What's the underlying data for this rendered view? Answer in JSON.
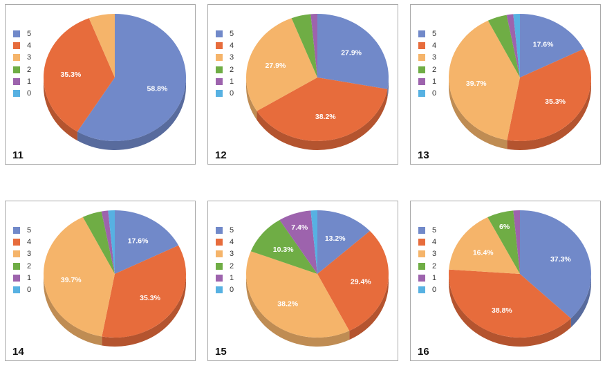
{
  "legend_categories": [
    "5",
    "4",
    "3",
    "2",
    "1",
    "0"
  ],
  "colors": {
    "5": "#7189c9",
    "4": "#e76c3c",
    "3": "#f5b46a",
    "2": "#6fad45",
    "1": "#9d63ad",
    "0": "#57b1e2"
  },
  "chart_data": [
    {
      "type": "pie",
      "title": "11",
      "categories": [
        "5",
        "4",
        "3",
        "2",
        "1",
        "0"
      ],
      "values": [
        58.8,
        35.3,
        5.9,
        0,
        0,
        0
      ],
      "data_labels": [
        "58.8%",
        "35.3%",
        "",
        "",
        "",
        ""
      ]
    },
    {
      "type": "pie",
      "title": "12",
      "categories": [
        "5",
        "4",
        "3",
        "2",
        "1",
        "0"
      ],
      "values": [
        27.9,
        38.2,
        27.9,
        4.4,
        1.5,
        0
      ],
      "data_labels": [
        "27.9%",
        "38.2%",
        "27.9%",
        "",
        "",
        ""
      ]
    },
    {
      "type": "pie",
      "title": "13",
      "categories": [
        "5",
        "4",
        "3",
        "2",
        "1",
        "0"
      ],
      "values": [
        17.6,
        35.3,
        39.7,
        4.4,
        1.5,
        1.5
      ],
      "data_labels": [
        "17.6%",
        "35.3%",
        "39.7%",
        "",
        "",
        ""
      ]
    },
    {
      "type": "pie",
      "title": "14",
      "categories": [
        "5",
        "4",
        "3",
        "2",
        "1",
        "0"
      ],
      "values": [
        17.6,
        35.3,
        39.7,
        4.4,
        1.5,
        1.5
      ],
      "data_labels": [
        "17.6%",
        "35.3%",
        "39.7%",
        "",
        "",
        ""
      ]
    },
    {
      "type": "pie",
      "title": "15",
      "categories": [
        "5",
        "4",
        "3",
        "2",
        "1",
        "0"
      ],
      "values": [
        13.2,
        29.4,
        38.2,
        10.3,
        7.4,
        1.5
      ],
      "data_labels": [
        "13.2%",
        "29.4%",
        "38.2%",
        "10.3%",
        "7.4%",
        ""
      ]
    },
    {
      "type": "pie",
      "title": "16",
      "categories": [
        "5",
        "4",
        "3",
        "2",
        "1",
        "0"
      ],
      "values": [
        37.3,
        38.8,
        16.4,
        6,
        1.5,
        0
      ],
      "data_labels": [
        "37.3%",
        "38.8%",
        "16.4%",
        "6%",
        "",
        ""
      ]
    }
  ]
}
